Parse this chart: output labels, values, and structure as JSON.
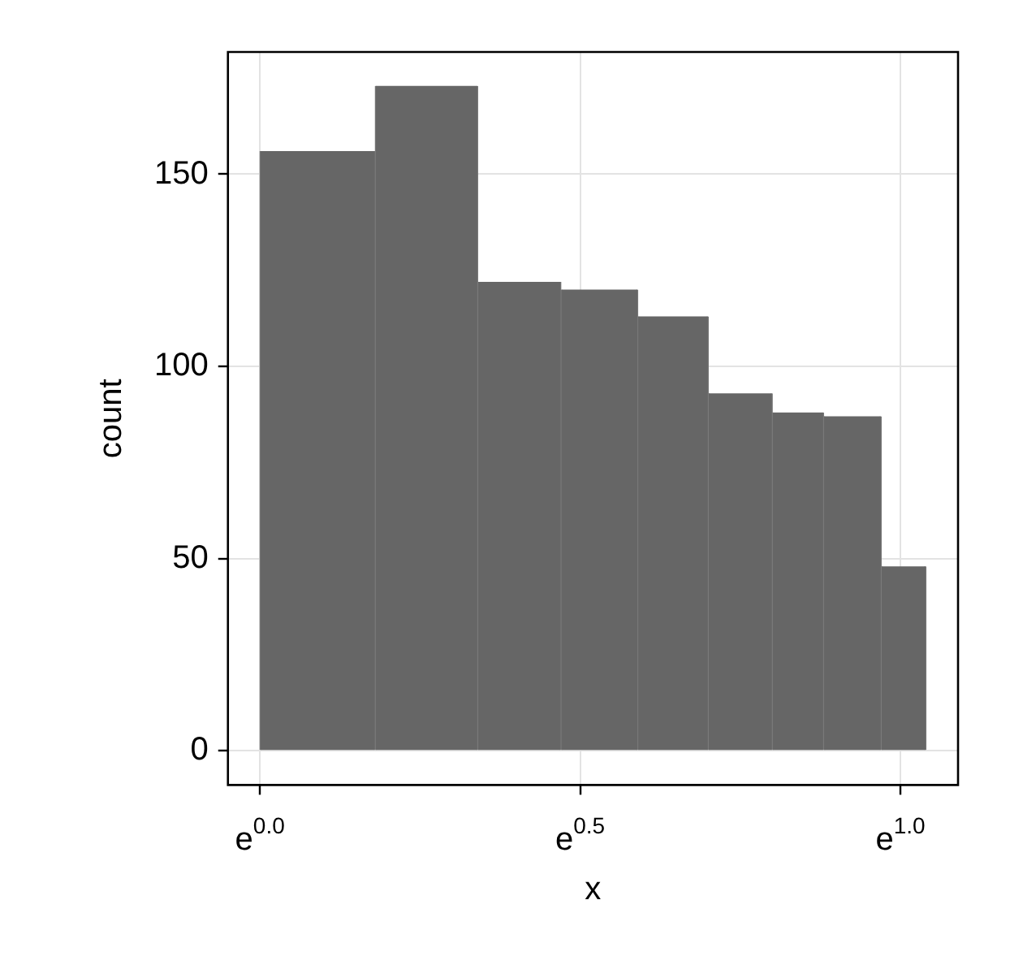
{
  "chart_data": {
    "type": "histogram",
    "xlabel": "x",
    "ylabel": "count",
    "bins": [
      0,
      0.18,
      0.34,
      0.47,
      0.59,
      0.7,
      0.8,
      0.88,
      0.97,
      1.04
    ],
    "values": [
      156,
      173,
      122,
      120,
      113,
      93,
      88,
      87,
      48
    ],
    "color": "#666666",
    "xlim": [
      -0.05,
      1.09
    ],
    "xticks": [
      {
        "value": 0,
        "label": "e$^{0.0}$"
      },
      {
        "value": 0.5,
        "label": "e$^{0.5}$"
      },
      {
        "value": 1.0,
        "label": "e$^{1.0}$"
      }
    ],
    "ylim": [
      -8.9,
      181.8
    ],
    "yticks": [
      0,
      50,
      100,
      150
    ],
    "grid": true,
    "legend": false
  }
}
